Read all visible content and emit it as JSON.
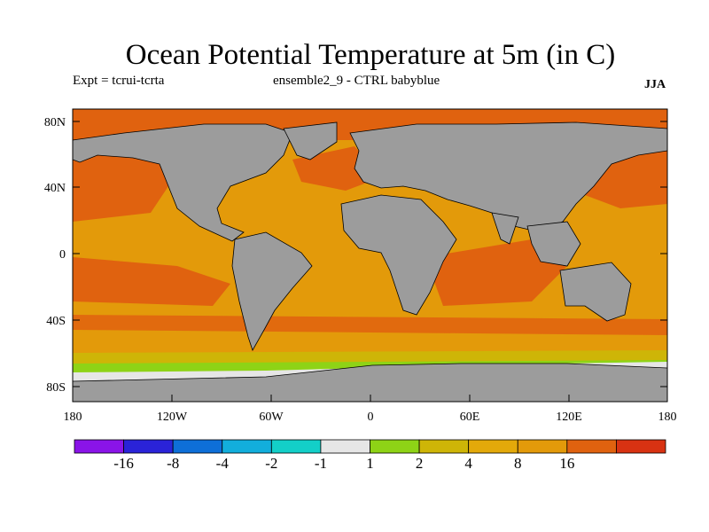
{
  "title": "Ocean Potential Temperature at 5m (in C)",
  "expt_label": "Expt = tcrui-tcrta",
  "ensemble_label": "ensemble2_9 - CTRL babyblue",
  "season_label": "JJA",
  "map": {
    "lat_ticks": [
      "80N",
      "40N",
      "0",
      "40S",
      "80S"
    ],
    "lon_ticks": [
      "180",
      "120W",
      "60W",
      "0",
      "60E",
      "120E",
      "180"
    ],
    "colors": {
      "land": "#9c9c9c",
      "warm_dark": "#e0620f",
      "warm": "#e39a0a",
      "mid": "#ceb507",
      "cool": "#8ed316",
      "ice": "#e6e6e6",
      "coast": "#000000"
    }
  },
  "colorbar": {
    "colors": [
      "#8a14e8",
      "#2a23d8",
      "#0e6fd8",
      "#12aedc",
      "#13cfc8",
      "#e6e6e6",
      "#8ed316",
      "#ceb507",
      "#e3a90a",
      "#e39a0a",
      "#e0620f",
      "#d83212"
    ],
    "labels": [
      "-16",
      "-8",
      "-4",
      "-2",
      "-1",
      "1",
      "2",
      "4",
      "8",
      "16"
    ]
  }
}
